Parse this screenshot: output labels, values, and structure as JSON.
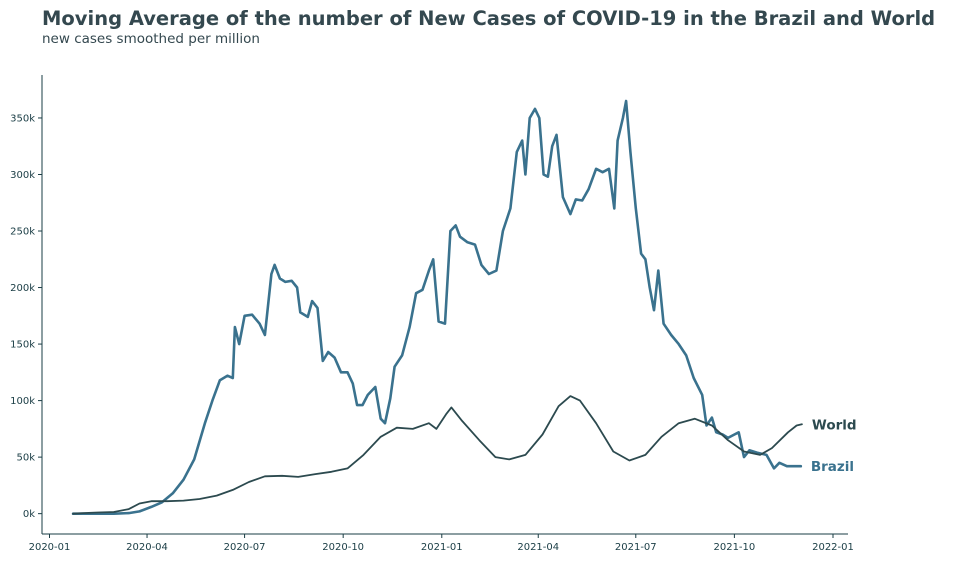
{
  "chart_data": {
    "type": "line",
    "title": "Moving Average of the number of New Cases of COVID-19 in the Brazil and World",
    "subtitle": "new cases smoothed per million",
    "xlabel": "",
    "ylabel": "",
    "ylim": [
      -18000,
      388000
    ],
    "xlim": [
      "2019-12-25",
      "2022-01-15"
    ],
    "grid": false,
    "legend": "line-end labels",
    "x_ticks": [
      "2020-01",
      "2020-04",
      "2020-07",
      "2020-10",
      "2021-01",
      "2021-04",
      "2021-07",
      "2021-10",
      "2022-01"
    ],
    "y_ticks": [
      {
        "value": 0,
        "label": "0k"
      },
      {
        "value": 50000,
        "label": "50k"
      },
      {
        "value": 100000,
        "label": "100k"
      },
      {
        "value": 150000,
        "label": "150k"
      },
      {
        "value": 200000,
        "label": "200k"
      },
      {
        "value": 250000,
        "label": "250k"
      },
      {
        "value": 300000,
        "label": "300k"
      },
      {
        "value": 350000,
        "label": "350k"
      }
    ],
    "series": [
      {
        "name": "Brazil",
        "color": "#3a728e",
        "points": [
          [
            "2020-01-23",
            0
          ],
          [
            "2020-02-15",
            0
          ],
          [
            "2020-03-01",
            0
          ],
          [
            "2020-03-15",
            500
          ],
          [
            "2020-03-25",
            2000
          ],
          [
            "2020-04-05",
            6000
          ],
          [
            "2020-04-15",
            10000
          ],
          [
            "2020-04-25",
            18000
          ],
          [
            "2020-05-05",
            30000
          ],
          [
            "2020-05-15",
            48000
          ],
          [
            "2020-05-25",
            80000
          ],
          [
            "2020-06-01",
            100000
          ],
          [
            "2020-06-08",
            118000
          ],
          [
            "2020-06-15",
            122000
          ],
          [
            "2020-06-20",
            120000
          ],
          [
            "2020-06-22",
            165000
          ],
          [
            "2020-06-26",
            150000
          ],
          [
            "2020-07-01",
            175000
          ],
          [
            "2020-07-08",
            176000
          ],
          [
            "2020-07-15",
            168000
          ],
          [
            "2020-07-20",
            158000
          ],
          [
            "2020-07-26",
            212000
          ],
          [
            "2020-07-29",
            220000
          ],
          [
            "2020-08-03",
            208000
          ],
          [
            "2020-08-08",
            205000
          ],
          [
            "2020-08-14",
            206000
          ],
          [
            "2020-08-19",
            200000
          ],
          [
            "2020-08-22",
            178000
          ],
          [
            "2020-08-29",
            174000
          ],
          [
            "2020-09-02",
            188000
          ],
          [
            "2020-09-07",
            182000
          ],
          [
            "2020-09-12",
            135000
          ],
          [
            "2020-09-17",
            143000
          ],
          [
            "2020-09-23",
            138000
          ],
          [
            "2020-09-29",
            125000
          ],
          [
            "2020-10-05",
            125000
          ],
          [
            "2020-10-10",
            115000
          ],
          [
            "2020-10-14",
            96000
          ],
          [
            "2020-10-19",
            96000
          ],
          [
            "2020-10-24",
            105000
          ],
          [
            "2020-10-31",
            112000
          ],
          [
            "2020-11-05",
            84000
          ],
          [
            "2020-11-09",
            80000
          ],
          [
            "2020-11-14",
            102000
          ],
          [
            "2020-11-18",
            130000
          ],
          [
            "2020-11-25",
            140000
          ],
          [
            "2020-12-02",
            165000
          ],
          [
            "2020-12-08",
            195000
          ],
          [
            "2020-12-14",
            198000
          ],
          [
            "2020-12-20",
            215000
          ],
          [
            "2020-12-24",
            225000
          ],
          [
            "2020-12-29",
            170000
          ],
          [
            "2021-01-04",
            168000
          ],
          [
            "2021-01-09",
            250000
          ],
          [
            "2021-01-14",
            255000
          ],
          [
            "2021-01-18",
            245000
          ],
          [
            "2021-01-25",
            240000
          ],
          [
            "2021-02-01",
            238000
          ],
          [
            "2021-02-07",
            220000
          ],
          [
            "2021-02-14",
            212000
          ],
          [
            "2021-02-21",
            215000
          ],
          [
            "2021-02-27",
            250000
          ],
          [
            "2021-03-06",
            270000
          ],
          [
            "2021-03-12",
            320000
          ],
          [
            "2021-03-17",
            330000
          ],
          [
            "2021-03-20",
            300000
          ],
          [
            "2021-03-24",
            350000
          ],
          [
            "2021-03-29",
            358000
          ],
          [
            "2021-04-02",
            350000
          ],
          [
            "2021-04-06",
            300000
          ],
          [
            "2021-04-10",
            298000
          ],
          [
            "2021-04-14",
            325000
          ],
          [
            "2021-04-18",
            335000
          ],
          [
            "2021-04-24",
            280000
          ],
          [
            "2021-05-01",
            265000
          ],
          [
            "2021-05-06",
            278000
          ],
          [
            "2021-05-12",
            277000
          ],
          [
            "2021-05-18",
            287000
          ],
          [
            "2021-05-25",
            305000
          ],
          [
            "2021-05-31",
            302000
          ],
          [
            "2021-06-06",
            305000
          ],
          [
            "2021-06-11",
            270000
          ],
          [
            "2021-06-14",
            330000
          ],
          [
            "2021-06-19",
            350000
          ],
          [
            "2021-06-22",
            365000
          ],
          [
            "2021-06-26",
            320000
          ],
          [
            "2021-07-01",
            270000
          ],
          [
            "2021-07-06",
            230000
          ],
          [
            "2021-07-10",
            225000
          ],
          [
            "2021-07-14",
            200000
          ],
          [
            "2021-07-18",
            180000
          ],
          [
            "2021-07-22",
            215000
          ],
          [
            "2021-07-27",
            168000
          ],
          [
            "2021-08-03",
            158000
          ],
          [
            "2021-08-10",
            150000
          ],
          [
            "2021-08-17",
            140000
          ],
          [
            "2021-08-24",
            120000
          ],
          [
            "2021-09-01",
            105000
          ],
          [
            "2021-09-05",
            78000
          ],
          [
            "2021-09-10",
            85000
          ],
          [
            "2021-09-14",
            72000
          ],
          [
            "2021-09-20",
            70000
          ],
          [
            "2021-09-25",
            67000
          ],
          [
            "2021-10-01",
            70000
          ],
          [
            "2021-10-05",
            72000
          ],
          [
            "2021-10-10",
            50000
          ],
          [
            "2021-10-15",
            56000
          ],
          [
            "2021-10-22",
            54000
          ],
          [
            "2021-10-31",
            52000
          ],
          [
            "2021-11-07",
            40000
          ],
          [
            "2021-11-12",
            45000
          ],
          [
            "2021-11-19",
            42000
          ],
          [
            "2021-11-25",
            42000
          ],
          [
            "2021-12-02",
            42000
          ]
        ]
      },
      {
        "name": "World",
        "color": "#2c4a4f",
        "points": [
          [
            "2020-01-23",
            0
          ],
          [
            "2020-02-01",
            500
          ],
          [
            "2020-02-15",
            1000
          ],
          [
            "2020-03-01",
            1500
          ],
          [
            "2020-03-15",
            4000
          ],
          [
            "2020-03-25",
            9000
          ],
          [
            "2020-04-05",
            11000
          ],
          [
            "2020-04-20",
            11000
          ],
          [
            "2020-05-05",
            11500
          ],
          [
            "2020-05-20",
            13000
          ],
          [
            "2020-06-05",
            16000
          ],
          [
            "2020-06-20",
            21000
          ],
          [
            "2020-07-05",
            28000
          ],
          [
            "2020-07-20",
            33000
          ],
          [
            "2020-08-05",
            33500
          ],
          [
            "2020-08-20",
            32500
          ],
          [
            "2020-09-05",
            35000
          ],
          [
            "2020-09-20",
            37000
          ],
          [
            "2020-10-05",
            40000
          ],
          [
            "2020-10-20",
            52000
          ],
          [
            "2020-11-05",
            68000
          ],
          [
            "2020-11-20",
            76000
          ],
          [
            "2020-12-05",
            75000
          ],
          [
            "2020-12-20",
            80000
          ],
          [
            "2020-12-27",
            75000
          ],
          [
            "2021-01-05",
            88000
          ],
          [
            "2021-01-10",
            94000
          ],
          [
            "2021-01-20",
            82000
          ],
          [
            "2021-02-05",
            65000
          ],
          [
            "2021-02-20",
            50000
          ],
          [
            "2021-03-05",
            48000
          ],
          [
            "2021-03-20",
            52000
          ],
          [
            "2021-04-05",
            70000
          ],
          [
            "2021-04-20",
            95000
          ],
          [
            "2021-05-01",
            104000
          ],
          [
            "2021-05-10",
            100000
          ],
          [
            "2021-05-25",
            80000
          ],
          [
            "2021-06-10",
            55000
          ],
          [
            "2021-06-25",
            47000
          ],
          [
            "2021-07-10",
            52000
          ],
          [
            "2021-07-25",
            68000
          ],
          [
            "2021-08-10",
            80000
          ],
          [
            "2021-08-25",
            84000
          ],
          [
            "2021-09-10",
            78000
          ],
          [
            "2021-09-25",
            65000
          ],
          [
            "2021-10-10",
            55000
          ],
          [
            "2021-10-25",
            52000
          ],
          [
            "2021-11-05",
            58000
          ],
          [
            "2021-11-20",
            72000
          ],
          [
            "2021-11-28",
            78000
          ],
          [
            "2021-12-03",
            79000
          ]
        ]
      }
    ]
  }
}
